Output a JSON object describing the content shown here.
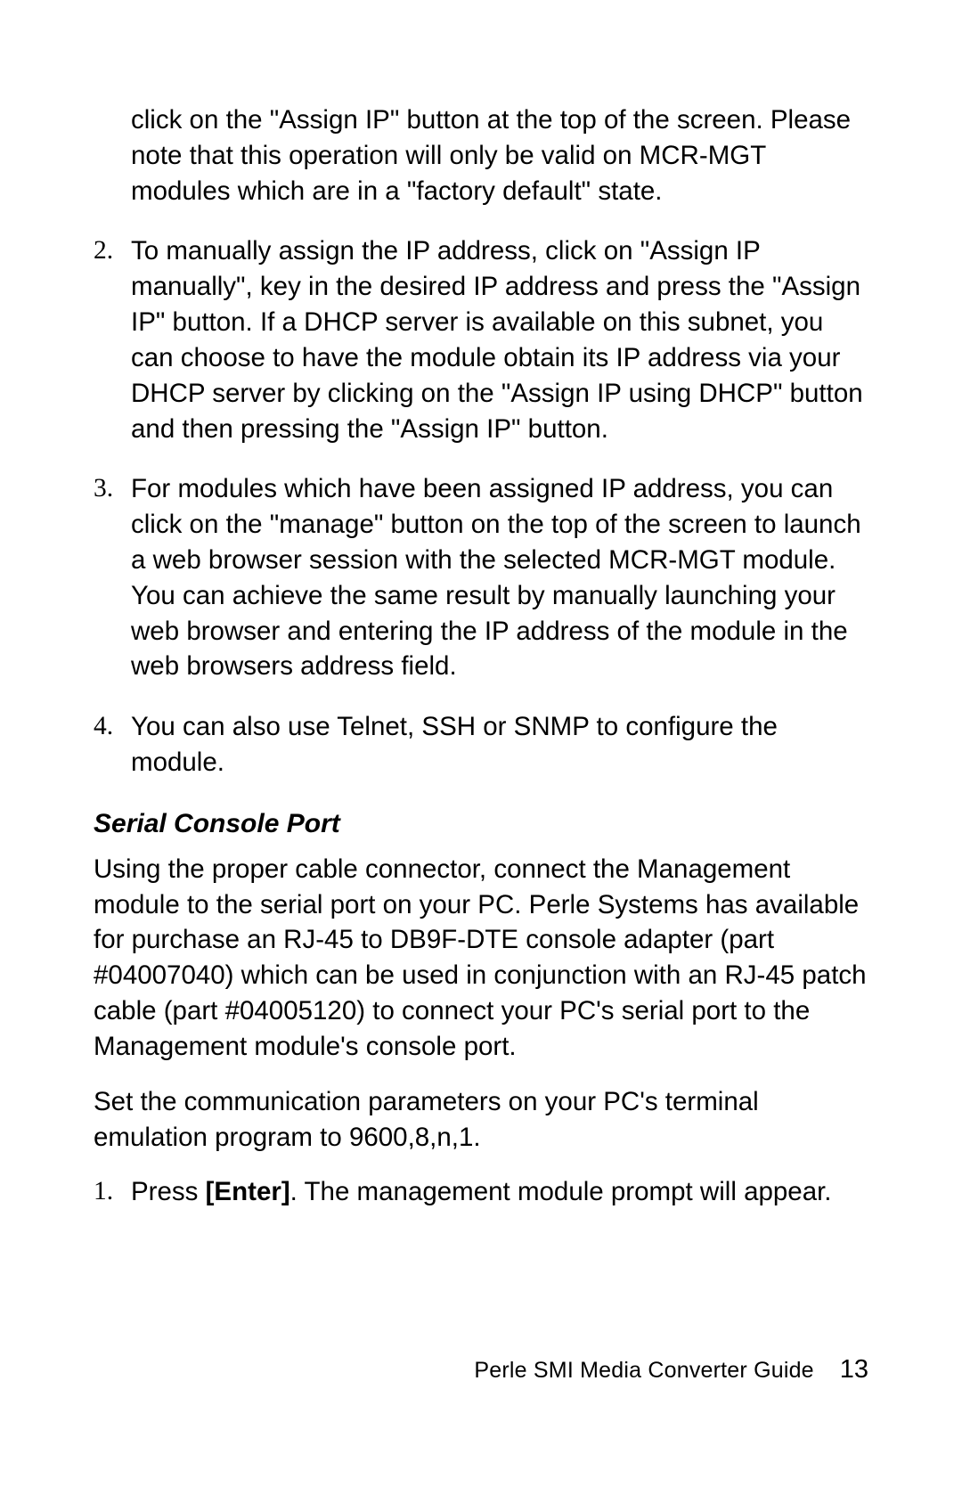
{
  "list1": {
    "continued": "click on the \"Assign IP\" button at the top of the screen. Please note that this operation will only be valid on MCR-MGT modules which are in a \"factory default\" state.",
    "items": [
      {
        "num": "2.",
        "text": "To manually assign the IP address, click on \"Assign IP manually\", key in the desired IP address and press the \"Assign IP\" button.  If a DHCP server is available on this subnet, you can choose to have the module obtain its IP address via your DHCP server by clicking on the \"Assign IP using DHCP\" button and then pressing the \"Assign IP\" button."
      },
      {
        "num": "3.",
        "text": "For modules which have been assigned IP address, you can click on the \"manage\" button on the top of the screen to launch a web browser session with the selected MCR-MGT module. You can achieve the same result by manually launching your web browser and entering the IP address of the module in the web browsers address field."
      },
      {
        "num": "4.",
        "text": "You can also use Telnet, SSH or SNMP to configure the module."
      }
    ]
  },
  "heading": "Serial Console Port",
  "para1": "Using the proper cable connector, connect the Management module to the serial port on your PC.  Perle Systems has available for purchase an RJ-45 to DB9F-DTE console adapter (part #04007040) which can be used in conjunction with an RJ-45 patch cable (part #04005120) to connect your PC's serial port to the Management module's console port.",
  "para2": "Set the communication parameters on your PC's terminal emulation program to 9600,8,n,1.",
  "list2": {
    "items": [
      {
        "num": "1.",
        "pre": "Press ",
        "bold": "[Enter]",
        "post": ".  The management module prompt will appear."
      }
    ]
  },
  "footer": {
    "title": "Perle SMI Media Converter Guide",
    "page": "13"
  }
}
